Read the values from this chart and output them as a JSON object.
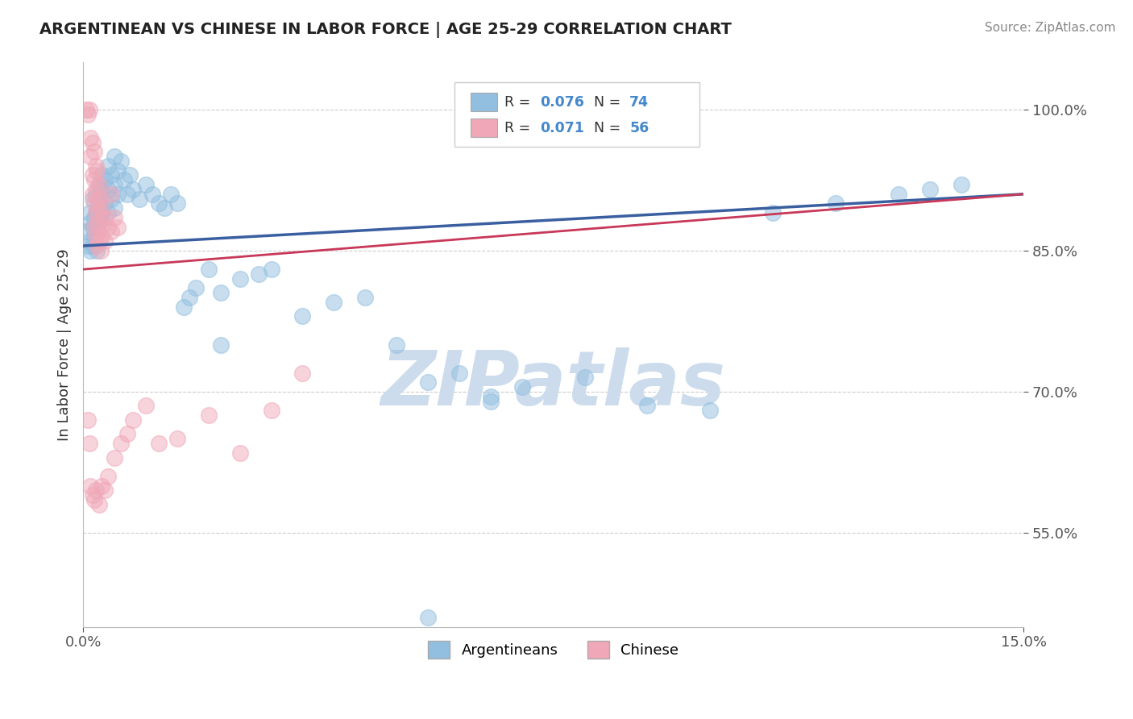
{
  "title": "ARGENTINEAN VS CHINESE IN LABOR FORCE | AGE 25-29 CORRELATION CHART",
  "source": "Source: ZipAtlas.com",
  "ylabel": "In Labor Force | Age 25-29",
  "xlim": [
    0.0,
    15.0
  ],
  "ylim": [
    45.0,
    105.0
  ],
  "yticks": [
    55.0,
    70.0,
    85.0,
    100.0
  ],
  "yticklabels": [
    "55.0%",
    "70.0%",
    "85.0%",
    "100.0%"
  ],
  "grid_color": "#cccccc",
  "background_color": "#ffffff",
  "watermark": "ZIPatlas",
  "watermark_color": "#ccdcec",
  "blue_color": "#92bfe0",
  "pink_color": "#f0a8b8",
  "blue_line_color": "#3a5fa0",
  "pink_line_color": "#c83858",
  "legend_r_blue": "0.076",
  "legend_n_blue": "74",
  "legend_r_pink": "0.071",
  "legend_n_pink": "56",
  "blue_scatter": [
    [
      0.05,
      87.0
    ],
    [
      0.08,
      85.5
    ],
    [
      0.1,
      89.0
    ],
    [
      0.1,
      86.0
    ],
    [
      0.12,
      88.0
    ],
    [
      0.12,
      85.0
    ],
    [
      0.15,
      90.5
    ],
    [
      0.15,
      87.5
    ],
    [
      0.15,
      85.5
    ],
    [
      0.18,
      88.5
    ],
    [
      0.18,
      86.5
    ],
    [
      0.2,
      91.0
    ],
    [
      0.2,
      89.0
    ],
    [
      0.22,
      87.5
    ],
    [
      0.22,
      85.0
    ],
    [
      0.25,
      92.0
    ],
    [
      0.25,
      90.0
    ],
    [
      0.25,
      88.0
    ],
    [
      0.28,
      91.5
    ],
    [
      0.28,
      89.0
    ],
    [
      0.3,
      93.0
    ],
    [
      0.3,
      91.0
    ],
    [
      0.3,
      88.5
    ],
    [
      0.35,
      92.5
    ],
    [
      0.35,
      90.0
    ],
    [
      0.4,
      94.0
    ],
    [
      0.4,
      91.5
    ],
    [
      0.4,
      89.0
    ],
    [
      0.45,
      93.0
    ],
    [
      0.45,
      90.5
    ],
    [
      0.5,
      95.0
    ],
    [
      0.5,
      92.0
    ],
    [
      0.5,
      89.5
    ],
    [
      0.55,
      93.5
    ],
    [
      0.55,
      91.0
    ],
    [
      0.6,
      94.5
    ],
    [
      0.65,
      92.5
    ],
    [
      0.7,
      91.0
    ],
    [
      0.75,
      93.0
    ],
    [
      0.8,
      91.5
    ],
    [
      0.9,
      90.5
    ],
    [
      1.0,
      92.0
    ],
    [
      1.1,
      91.0
    ],
    [
      1.2,
      90.0
    ],
    [
      1.3,
      89.5
    ],
    [
      1.4,
      91.0
    ],
    [
      1.5,
      90.0
    ],
    [
      1.6,
      79.0
    ],
    [
      1.7,
      80.0
    ],
    [
      1.8,
      81.0
    ],
    [
      2.0,
      83.0
    ],
    [
      2.2,
      80.5
    ],
    [
      2.5,
      82.0
    ],
    [
      2.8,
      82.5
    ],
    [
      3.0,
      83.0
    ],
    [
      3.5,
      78.0
    ],
    [
      4.0,
      79.5
    ],
    [
      4.5,
      80.0
    ],
    [
      5.0,
      75.0
    ],
    [
      5.5,
      71.0
    ],
    [
      6.0,
      72.0
    ],
    [
      6.5,
      69.0
    ],
    [
      7.0,
      70.5
    ],
    [
      8.0,
      71.5
    ],
    [
      9.0,
      68.5
    ],
    [
      10.0,
      68.0
    ],
    [
      11.0,
      89.0
    ],
    [
      12.0,
      90.0
    ],
    [
      13.0,
      91.0
    ],
    [
      13.5,
      91.5
    ],
    [
      14.0,
      92.0
    ],
    [
      5.5,
      46.0
    ],
    [
      6.5,
      69.5
    ],
    [
      2.2,
      75.0
    ]
  ],
  "pink_scatter": [
    [
      0.05,
      100.0
    ],
    [
      0.07,
      99.5
    ],
    [
      0.1,
      100.0
    ],
    [
      0.12,
      97.0
    ],
    [
      0.12,
      95.0
    ],
    [
      0.15,
      96.5
    ],
    [
      0.15,
      93.0
    ],
    [
      0.15,
      91.0
    ],
    [
      0.18,
      95.5
    ],
    [
      0.18,
      92.5
    ],
    [
      0.18,
      90.0
    ],
    [
      0.18,
      87.5
    ],
    [
      0.2,
      94.0
    ],
    [
      0.2,
      91.5
    ],
    [
      0.2,
      89.0
    ],
    [
      0.2,
      86.5
    ],
    [
      0.22,
      93.5
    ],
    [
      0.22,
      90.5
    ],
    [
      0.22,
      88.0
    ],
    [
      0.22,
      85.5
    ],
    [
      0.25,
      92.0
    ],
    [
      0.25,
      89.0
    ],
    [
      0.25,
      86.0
    ],
    [
      0.28,
      90.5
    ],
    [
      0.28,
      87.5
    ],
    [
      0.28,
      85.0
    ],
    [
      0.3,
      89.5
    ],
    [
      0.3,
      86.5
    ],
    [
      0.35,
      88.5
    ],
    [
      0.35,
      86.0
    ],
    [
      0.4,
      87.5
    ],
    [
      0.45,
      91.0
    ],
    [
      0.45,
      87.0
    ],
    [
      0.5,
      88.5
    ],
    [
      0.55,
      87.5
    ],
    [
      0.08,
      67.0
    ],
    [
      0.1,
      64.5
    ],
    [
      0.12,
      60.0
    ],
    [
      0.15,
      59.0
    ],
    [
      0.18,
      58.5
    ],
    [
      0.2,
      59.5
    ],
    [
      0.25,
      58.0
    ],
    [
      0.3,
      60.0
    ],
    [
      0.35,
      59.5
    ],
    [
      0.4,
      61.0
    ],
    [
      0.5,
      63.0
    ],
    [
      0.6,
      64.5
    ],
    [
      0.7,
      65.5
    ],
    [
      0.8,
      67.0
    ],
    [
      1.0,
      68.5
    ],
    [
      1.2,
      64.5
    ],
    [
      1.5,
      65.0
    ],
    [
      2.0,
      67.5
    ],
    [
      2.5,
      63.5
    ],
    [
      3.0,
      68.0
    ],
    [
      3.5,
      72.0
    ]
  ]
}
